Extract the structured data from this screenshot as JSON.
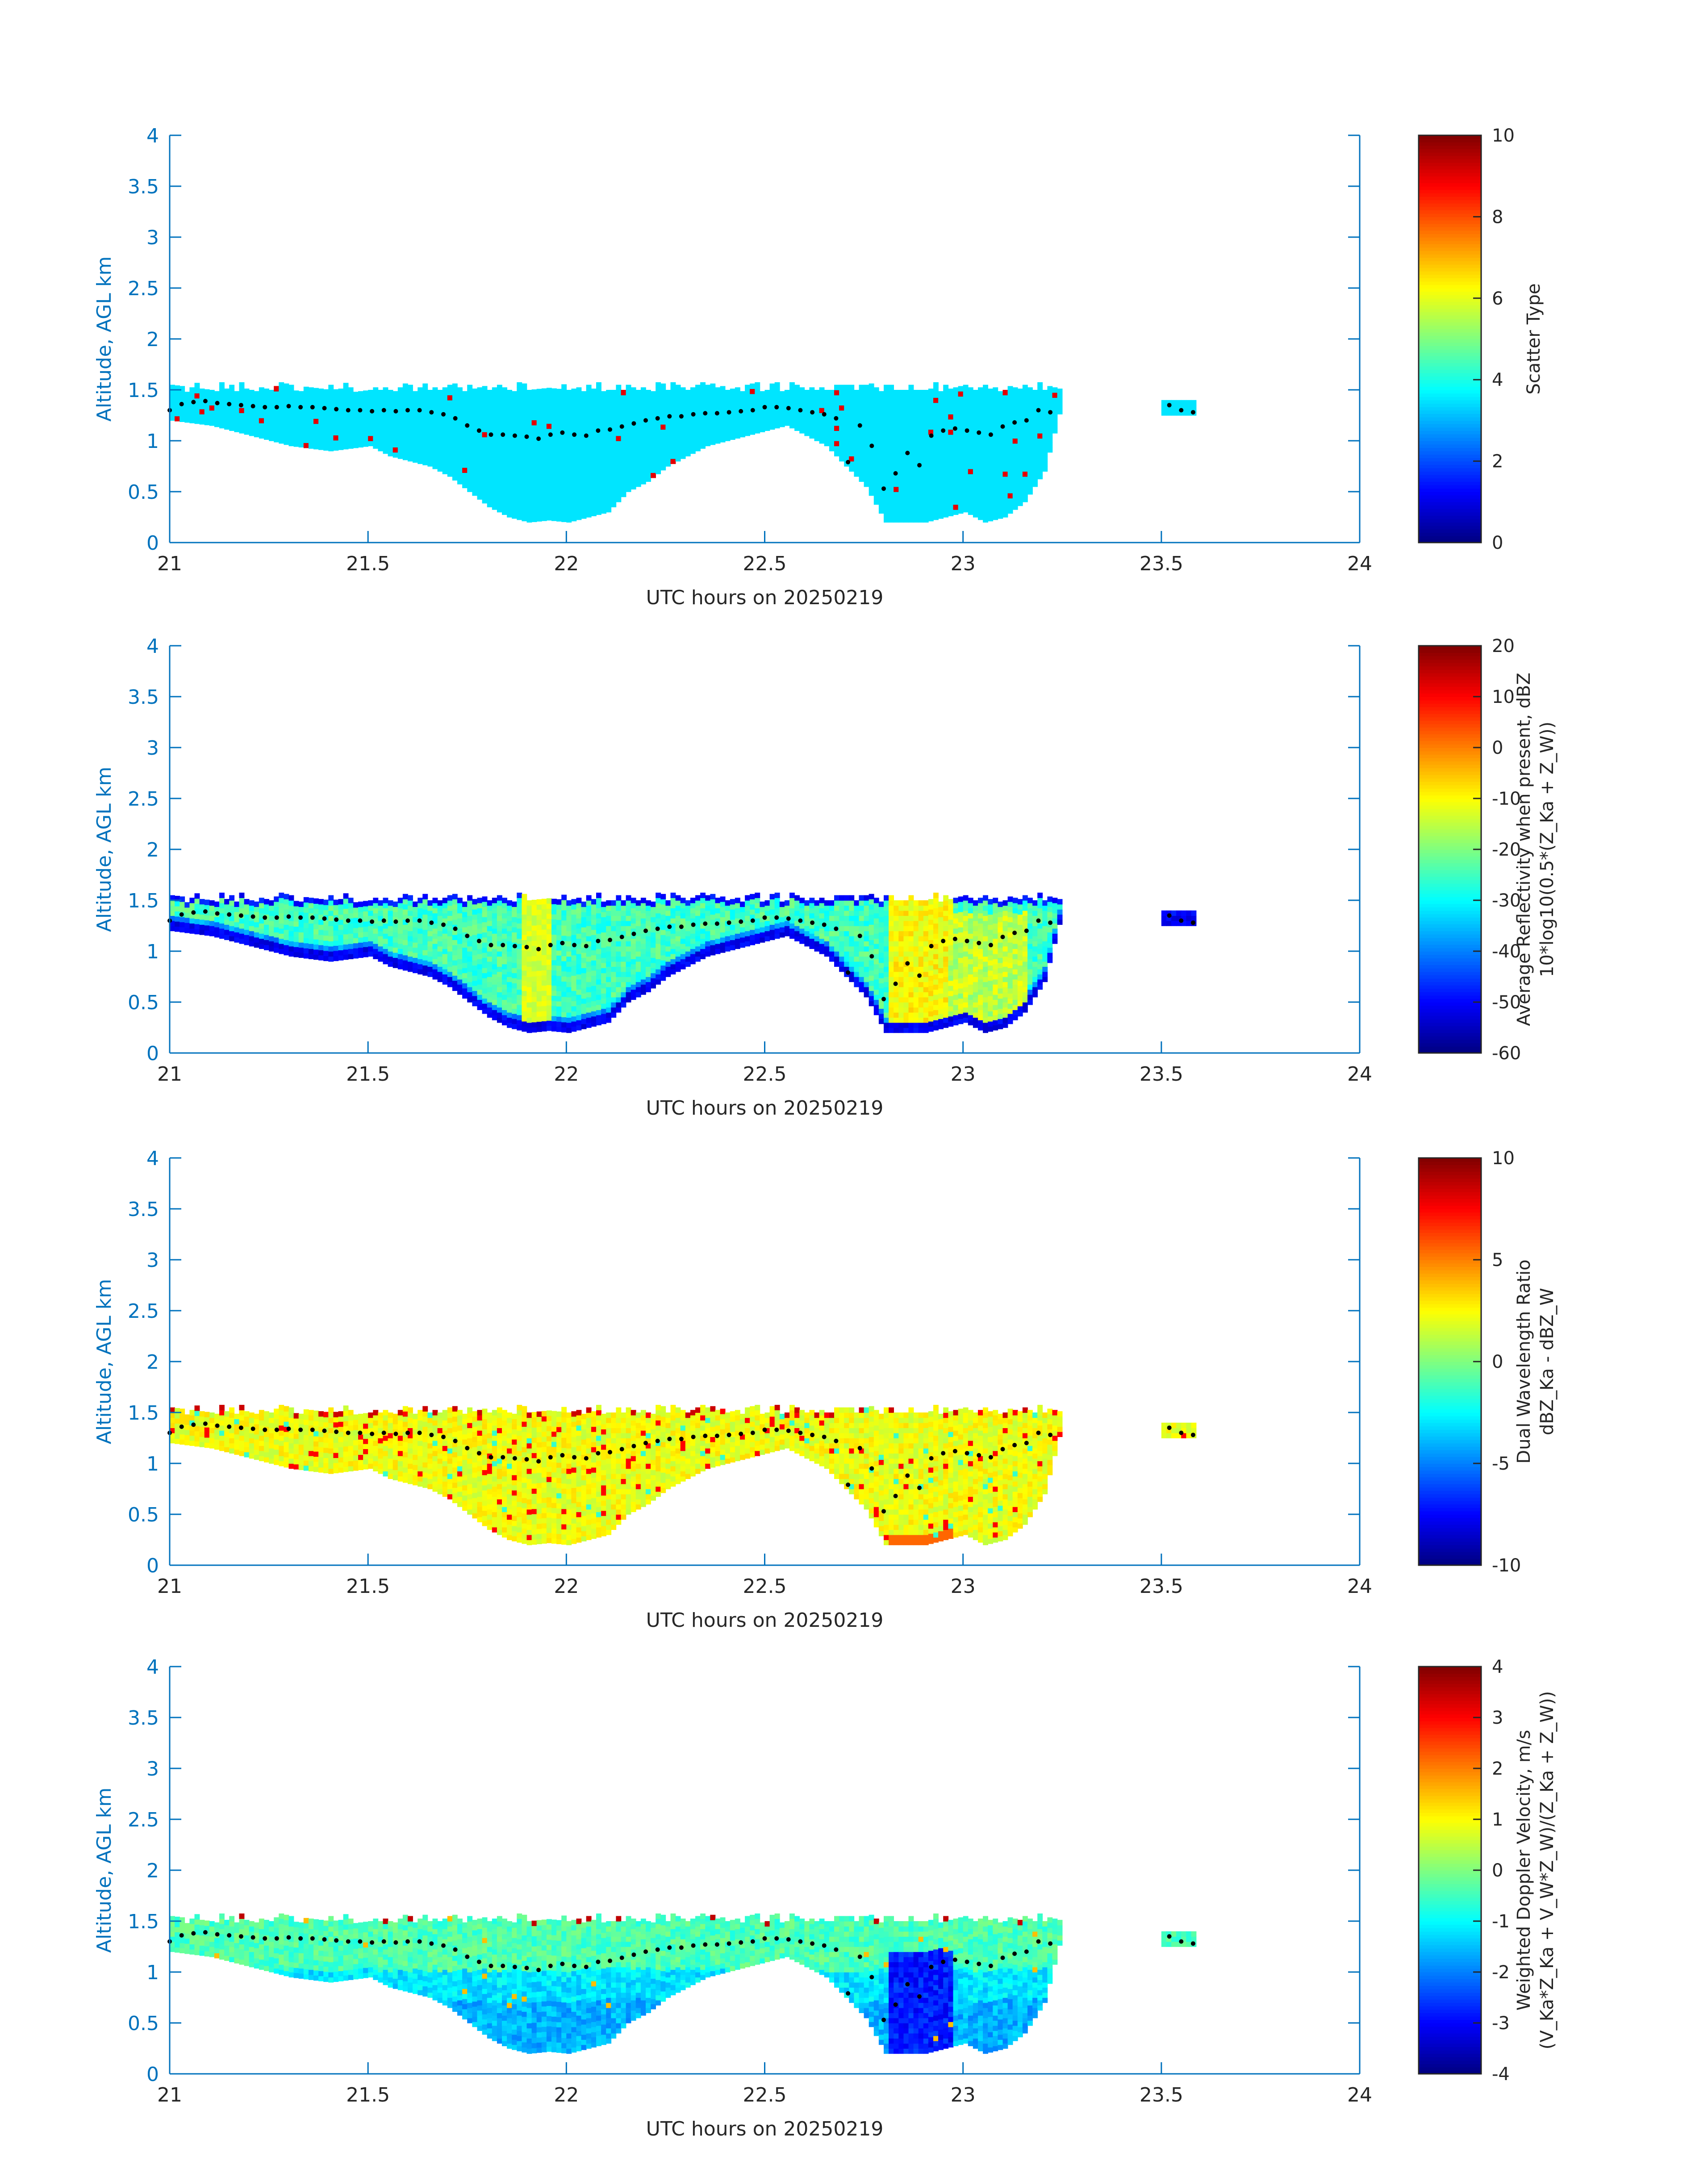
{
  "figure": {
    "x_ticks": [
      "21",
      "21.5",
      "22",
      "22.5",
      "23",
      "23.5",
      "24"
    ],
    "y_ticks": [
      "0",
      "0.5",
      "1",
      "1.5",
      "2",
      "2.5",
      "3",
      "3.5",
      "4"
    ],
    "colors": {
      "axis": "#0072bd",
      "frame": "#0072bd",
      "text": "#262626",
      "markers": "#000000",
      "background": "#ffffff"
    }
  },
  "chart_data": [
    {
      "type": "heatmap",
      "id": "scatter-type",
      "xlabel": "UTC hours on 20250219",
      "ylabel": "Altitude, AGL km",
      "xlim": [
        21,
        24
      ],
      "ylim": [
        0,
        4
      ],
      "colorbar": {
        "label_lines": [
          "Scatter Type"
        ],
        "clim": [
          0,
          10
        ],
        "ticks": [
          "0",
          "2",
          "4",
          "6",
          "8",
          "10"
        ],
        "colormap": "jet"
      },
      "field": "scatter_type",
      "notes": "Cloud mostly scatter type ~3.5 (cyan) with a few isolated ~9 (red-orange) cells"
    },
    {
      "type": "heatmap",
      "id": "reflectivity",
      "xlabel": "UTC hours on 20250219",
      "ylabel": "Altitude, AGL km",
      "xlim": [
        21,
        24
      ],
      "ylim": [
        0,
        4
      ],
      "colorbar": {
        "label_lines": [
          "Average Reflectivity when present, dBZ",
          "10*log10(0.5*(Z_Ka + Z_W))"
        ],
        "clim": [
          -60,
          20
        ],
        "ticks": [
          "-60",
          "-50",
          "-40",
          "-30",
          "-20",
          "-10",
          "0",
          "10",
          "20"
        ],
        "colormap": "jet"
      },
      "field": "reflectivity"
    },
    {
      "type": "heatmap",
      "id": "dwr",
      "xlabel": "UTC hours on 20250219",
      "ylabel": "Altitude, AGL km",
      "xlim": [
        21,
        24
      ],
      "ylim": [
        0,
        4
      ],
      "colorbar": {
        "label_lines": [
          "Dual Wavelength Ratio",
          "dBZ_Ka - dBZ_W"
        ],
        "clim": [
          -10,
          10
        ],
        "ticks": [
          "-10",
          "-5",
          "0",
          "5",
          "10"
        ],
        "colormap": "jet"
      },
      "field": "dwr"
    },
    {
      "type": "heatmap",
      "id": "doppler",
      "xlabel": "UTC hours on 20250219",
      "ylabel": "Altitude, AGL km",
      "xlim": [
        21,
        24
      ],
      "ylim": [
        0,
        4
      ],
      "colorbar": {
        "label_lines": [
          "Weighted Doppler Velocity, m/s",
          "(V_Ka*Z_Ka + V_W*Z_W)/(Z_Ka + Z_W))"
        ],
        "clim": [
          -4,
          4
        ],
        "ticks": [
          "-4",
          "-3",
          "-2",
          "-1",
          "0",
          "1",
          "2",
          "3",
          "4"
        ],
        "colormap": "jet"
      },
      "field": "doppler"
    }
  ],
  "cloud_extent": {
    "time_step_h": 0.0125,
    "cloud_top_km": 1.48,
    "main_block": {
      "start_h": 21.0,
      "end_h": 23.24
    },
    "small_block": {
      "start_h": 23.5,
      "end_h": 23.58,
      "bottom_km": 1.25,
      "top_km": 1.4
    },
    "base_profile": {
      "t": [
        21.0,
        21.1,
        21.2,
        21.3,
        21.4,
        21.5,
        21.55,
        21.6,
        21.65,
        21.7,
        21.75,
        21.8,
        21.85,
        21.9,
        21.95,
        22.0,
        22.05,
        22.1,
        22.15,
        22.2,
        22.25,
        22.3,
        22.35,
        22.4,
        22.45,
        22.5,
        22.55,
        22.6,
        22.65,
        22.7,
        22.75,
        22.8,
        22.85,
        22.9,
        22.95,
        23.0,
        23.05,
        23.1,
        23.15,
        23.2,
        23.24
      ],
      "base_km": [
        1.2,
        1.15,
        1.05,
        0.95,
        0.9,
        0.95,
        0.85,
        0.8,
        0.75,
        0.65,
        0.5,
        0.35,
        0.25,
        0.2,
        0.22,
        0.2,
        0.25,
        0.3,
        0.5,
        0.6,
        0.75,
        0.85,
        0.95,
        1.0,
        1.05,
        1.1,
        1.15,
        1.05,
        0.95,
        0.75,
        0.55,
        0.2,
        0.2,
        0.2,
        0.25,
        0.3,
        0.2,
        0.25,
        0.4,
        0.7,
        1.3
      ]
    }
  },
  "markers": {
    "t": [
      21.0,
      21.03,
      21.06,
      21.09,
      21.12,
      21.15,
      21.18,
      21.21,
      21.24,
      21.27,
      21.3,
      21.33,
      21.36,
      21.39,
      21.42,
      21.45,
      21.48,
      21.51,
      21.54,
      21.57,
      21.6,
      21.63,
      21.66,
      21.69,
      21.72,
      21.75,
      21.78,
      21.81,
      21.84,
      21.87,
      21.9,
      21.93,
      21.96,
      21.99,
      22.02,
      22.05,
      22.08,
      22.11,
      22.14,
      22.17,
      22.2,
      22.23,
      22.26,
      22.29,
      22.32,
      22.35,
      22.38,
      22.41,
      22.44,
      22.47,
      22.5,
      22.53,
      22.56,
      22.59,
      22.62,
      22.65,
      22.68,
      22.71,
      22.74,
      22.77,
      22.8,
      22.83,
      22.86,
      22.89,
      22.92,
      22.95,
      22.98,
      23.01,
      23.04,
      23.07,
      23.1,
      23.13,
      23.16,
      23.19,
      23.22,
      23.52,
      23.55,
      23.58
    ],
    "alt_km": [
      1.3,
      1.36,
      1.38,
      1.39,
      1.37,
      1.36,
      1.35,
      1.34,
      1.33,
      1.33,
      1.34,
      1.33,
      1.33,
      1.32,
      1.31,
      1.3,
      1.3,
      1.29,
      1.3,
      1.29,
      1.3,
      1.3,
      1.28,
      1.26,
      1.22,
      1.15,
      1.1,
      1.06,
      1.06,
      1.05,
      1.04,
      1.02,
      1.06,
      1.08,
      1.06,
      1.05,
      1.1,
      1.11,
      1.14,
      1.17,
      1.2,
      1.22,
      1.24,
      1.24,
      1.26,
      1.27,
      1.27,
      1.28,
      1.29,
      1.3,
      1.33,
      1.33,
      1.32,
      1.3,
      1.28,
      1.26,
      1.22,
      0.79,
      1.15,
      0.95,
      0.53,
      0.68,
      0.88,
      0.76,
      1.05,
      1.1,
      1.12,
      1.1,
      1.08,
      1.06,
      1.14,
      1.18,
      1.2,
      1.3,
      1.28,
      1.35,
      1.3,
      1.28
    ]
  }
}
